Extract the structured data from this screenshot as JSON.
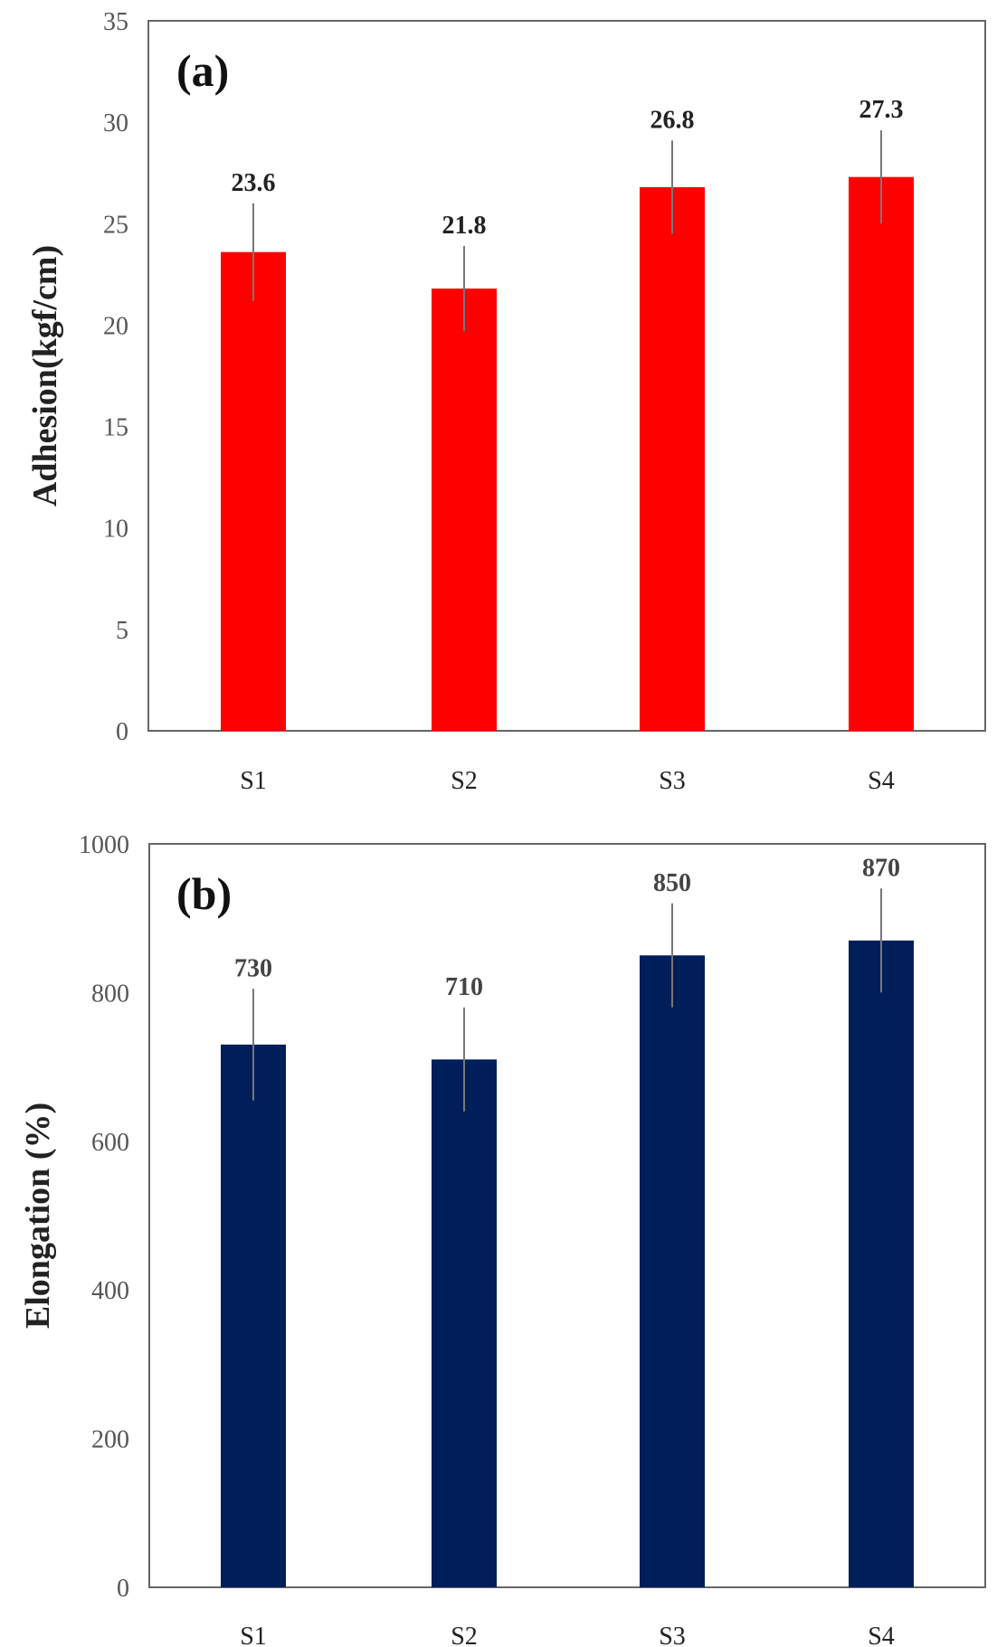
{
  "chart_data": [
    {
      "type": "bar",
      "panel_label": "(a)",
      "title": "",
      "xlabel": "",
      "ylabel": "Adhesion(kgf/cm)",
      "categories": [
        "S1",
        "S2",
        "S3",
        "S4"
      ],
      "values": [
        23.6,
        21.8,
        26.8,
        27.3
      ],
      "value_labels": [
        "23.6",
        "21.8",
        "26.8",
        "27.3"
      ],
      "errors": [
        2.4,
        2.1,
        2.3,
        2.3
      ],
      "ylim": [
        0,
        35
      ],
      "yticks": [
        0,
        5,
        10,
        15,
        20,
        25,
        30,
        35
      ],
      "ytick_labels": [
        "0",
        "5",
        "10",
        "15",
        "20",
        "25",
        "30",
        "35"
      ],
      "color": "#ff0000",
      "grid": false
    },
    {
      "type": "bar",
      "panel_label": "(b)",
      "title": "",
      "xlabel": "",
      "ylabel": "Elongation (%)",
      "categories": [
        "S1",
        "S2",
        "S3",
        "S4"
      ],
      "values": [
        730,
        710,
        850,
        870
      ],
      "value_labels": [
        "730",
        "710",
        "850",
        "870"
      ],
      "errors": [
        75,
        70,
        70,
        70
      ],
      "ylim": [
        0,
        1000
      ],
      "yticks": [
        0,
        200,
        400,
        600,
        800,
        1000
      ],
      "ytick_labels": [
        "0",
        "200",
        "400",
        "600",
        "800",
        "1000"
      ],
      "color": "#001e5a",
      "grid": false
    }
  ]
}
